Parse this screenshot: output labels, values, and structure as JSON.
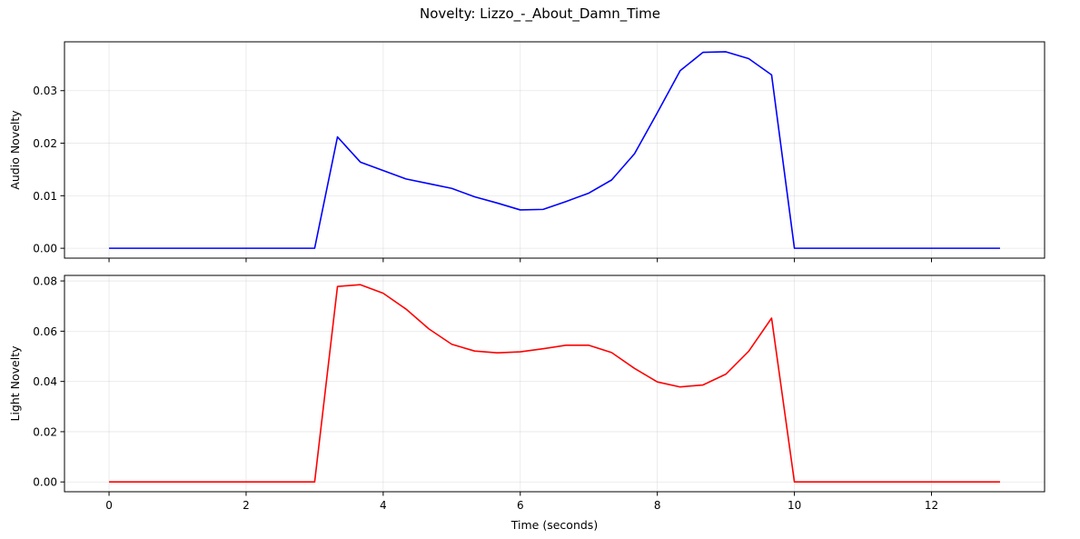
{
  "figure": {
    "title": "Novelty: Lizzo_-_About_Damn_Time"
  },
  "chart_data": [
    {
      "type": "line",
      "title": "",
      "xlabel": "",
      "ylabel": "Audio Novelty",
      "xlim": [
        -0.65,
        13.65
      ],
      "ylim": [
        -0.00188,
        0.0393
      ],
      "xticks": [
        0,
        2,
        4,
        6,
        8,
        10,
        12
      ],
      "yticks": [
        0.0,
        0.01,
        0.02,
        0.03
      ],
      "ytick_labels": [
        "0.00",
        "0.01",
        "0.02",
        "0.03"
      ],
      "grid": true,
      "series": [
        {
          "color": "#0000ff",
          "x": [
            0,
            3.0,
            3.333,
            3.667,
            4.0,
            4.333,
            4.667,
            5.0,
            5.333,
            5.667,
            6.0,
            6.333,
            6.667,
            7.0,
            7.333,
            7.667,
            8.0,
            8.333,
            8.667,
            9.0,
            9.333,
            9.667,
            10.0,
            13.0
          ],
          "y": [
            0,
            0,
            0.0212,
            0.0164,
            0.0148,
            0.0132,
            0.0123,
            0.0114,
            0.0098,
            0.0086,
            0.0073,
            0.0074,
            0.0089,
            0.0105,
            0.013,
            0.018,
            0.0258,
            0.0338,
            0.0373,
            0.0374,
            0.0361,
            0.033,
            0,
            0
          ]
        }
      ]
    },
    {
      "type": "line",
      "title": "",
      "xlabel": "Time (seconds)",
      "ylabel": "Light Novelty",
      "xlim": [
        -0.65,
        13.65
      ],
      "ylim": [
        -0.0039,
        0.0822
      ],
      "xticks": [
        0,
        2,
        4,
        6,
        8,
        10,
        12
      ],
      "xtick_labels": [
        "0",
        "2",
        "4",
        "6",
        "8",
        "10",
        "12"
      ],
      "yticks": [
        0.0,
        0.02,
        0.04,
        0.06,
        0.08
      ],
      "ytick_labels": [
        "0.00",
        "0.02",
        "0.04",
        "0.06",
        "0.08"
      ],
      "grid": true,
      "series": [
        {
          "color": "#ff0000",
          "x": [
            0,
            3.0,
            3.333,
            3.667,
            4.0,
            4.333,
            4.667,
            5.0,
            5.333,
            5.667,
            6.0,
            6.333,
            6.667,
            7.0,
            7.333,
            7.667,
            8.0,
            8.333,
            8.667,
            9.0,
            9.333,
            9.667,
            10.0,
            13.0
          ],
          "y": [
            0,
            0,
            0.0778,
            0.0785,
            0.0751,
            0.0688,
            0.0609,
            0.0548,
            0.0521,
            0.0514,
            0.0518,
            0.053,
            0.0544,
            0.0544,
            0.0515,
            0.0452,
            0.0398,
            0.0378,
            0.0386,
            0.0429,
            0.052,
            0.0652,
            0,
            0
          ]
        }
      ]
    }
  ]
}
